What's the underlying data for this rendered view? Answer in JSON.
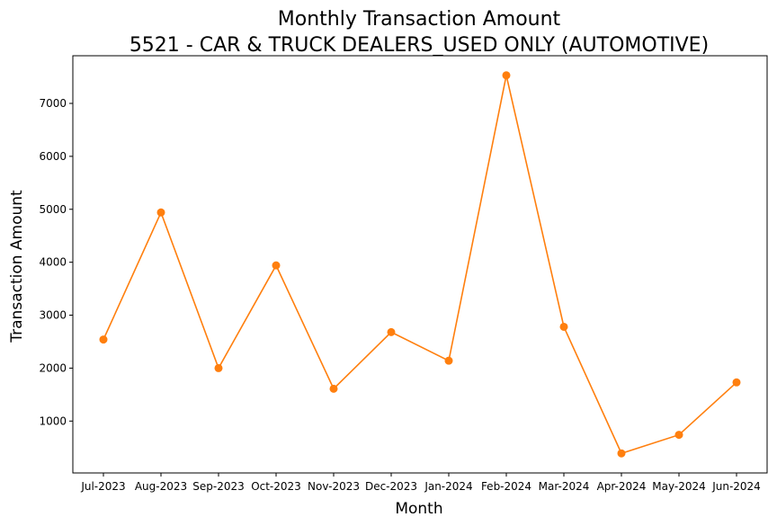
{
  "chart_data": {
    "type": "line",
    "title": "Monthly Transaction Amount",
    "subtitle": "5521 - CAR & TRUCK DEALERS_USED ONLY (AUTOMOTIVE)",
    "xlabel": "Month",
    "ylabel": "Transaction Amount",
    "categories": [
      "Jul-2023",
      "Aug-2023",
      "Sep-2023",
      "Oct-2023",
      "Nov-2023",
      "Dec-2023",
      "Jan-2024",
      "Feb-2024",
      "Mar-2024",
      "Apr-2024",
      "May-2024",
      "Jun-2024"
    ],
    "series": [
      {
        "values": [
          2540,
          4940,
          2000,
          3940,
          1610,
          2680,
          2140,
          7530,
          2780,
          390,
          740,
          1730
        ],
        "color": "#ff7f0e",
        "marker": "circle"
      }
    ],
    "yticks": [
      1000,
      2000,
      3000,
      4000,
      5000,
      6000,
      7000
    ],
    "ylim": [
      20,
      7900
    ],
    "grid": false,
    "legend": false
  }
}
